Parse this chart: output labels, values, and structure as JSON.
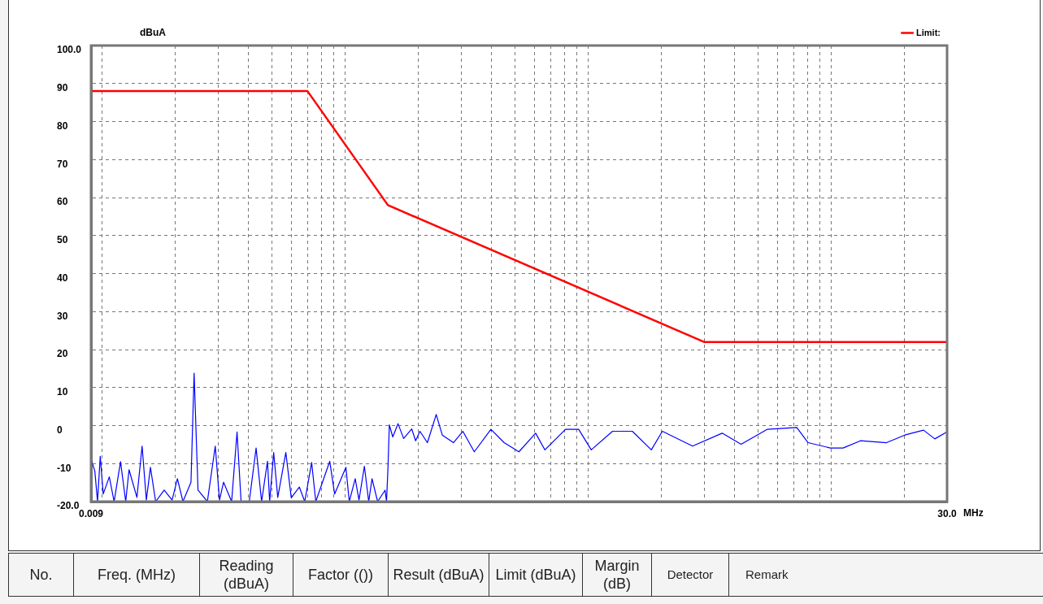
{
  "chart_data": {
    "type": "line",
    "xlabel": "MHz",
    "ylabel": "dBuA",
    "log": "x",
    "grid": true,
    "legend": "top right",
    "marker": "none",
    "line_style": "solid",
    "xlim": [
      0.009,
      30
    ],
    "ylim": [
      -20,
      100
    ],
    "xticks": [
      {
        "value": 0.009,
        "label": "0.009"
      },
      {
        "value": 0.01,
        "label": null
      },
      {
        "value": 0.02,
        "label": null
      },
      {
        "value": 0.03,
        "label": null
      },
      {
        "value": 0.04,
        "label": null
      },
      {
        "value": 0.05,
        "label": null
      },
      {
        "value": 0.06,
        "label": null
      },
      {
        "value": 0.07,
        "label": null
      },
      {
        "value": 0.08,
        "label": null
      },
      {
        "value": 0.09,
        "label": null
      },
      {
        "value": 0.1,
        "label": null
      },
      {
        "value": 0.2,
        "label": null
      },
      {
        "value": 0.3,
        "label": null
      },
      {
        "value": 0.4,
        "label": null
      },
      {
        "value": 0.5,
        "label": null
      },
      {
        "value": 0.6,
        "label": null
      },
      {
        "value": 0.7,
        "label": null
      },
      {
        "value": 0.8,
        "label": null
      },
      {
        "value": 0.9,
        "label": null
      },
      {
        "value": 1,
        "label": null
      },
      {
        "value": 2,
        "label": null
      },
      {
        "value": 3,
        "label": null
      },
      {
        "value": 4,
        "label": null
      },
      {
        "value": 5,
        "label": null
      },
      {
        "value": 6,
        "label": null
      },
      {
        "value": 7,
        "label": null
      },
      {
        "value": 8,
        "label": null
      },
      {
        "value": 9,
        "label": null
      },
      {
        "value": 10,
        "label": null
      },
      {
        "value": 20,
        "label": null
      },
      {
        "value": 30,
        "label": "30.0"
      }
    ],
    "yticks": [
      {
        "value": -20,
        "label": "-20.0"
      },
      -10,
      0,
      10,
      20,
      30,
      40,
      50,
      60,
      70,
      80,
      90,
      {
        "value": 100,
        "label": "100.0"
      }
    ],
    "series": [
      {
        "name": "Limit:",
        "color": "#ff0000",
        "x": [
          0.009,
          0.07,
          0.15,
          3,
          30
        ],
        "values": [
          88,
          88,
          58,
          22,
          22
        ]
      },
      {
        "color": "#0000ff",
        "x": [
          0.009,
          0.00933,
          0.00957,
          0.00982,
          0.0101,
          0.0107,
          0.0112,
          0.0119,
          0.0125,
          0.0129,
          0.0139,
          0.0146,
          0.0152,
          0.0158,
          0.0166,
          0.018,
          0.0194,
          0.0204,
          0.0215,
          0.0232,
          0.0239,
          0.0248,
          0.0271,
          0.0292,
          0.0304,
          0.0316,
          0.0341,
          0.0359,
          0.0373,
          0.0403,
          0.043,
          0.0453,
          0.0479,
          0.0489,
          0.0508,
          0.0528,
          0.057,
          0.06,
          0.0648,
          0.0682,
          0.0728,
          0.0757,
          0.0864,
          0.0905,
          0.1007,
          0.104,
          0.11,
          0.114,
          0.12,
          0.125,
          0.129,
          0.136,
          0.146,
          0.148,
          0.15,
          0.152,
          0.157,
          0.165,
          0.174,
          0.188,
          0.195,
          0.203,
          0.218,
          0.237,
          0.251,
          0.279,
          0.305,
          0.34,
          0.398,
          0.451,
          0.519,
          0.608,
          0.664,
          0.807,
          0.914,
          1.03,
          1.26,
          1.52,
          1.82,
          2.02,
          2.69,
          3.56,
          4.26,
          5.45,
          7.22,
          8.04,
          9.93,
          11.2,
          13.2,
          16.9,
          20.1,
          24,
          26.7,
          29.7,
          30
        ],
        "values": [
          -8.8,
          -12,
          -20,
          -8.1,
          -18,
          -13.5,
          -20,
          -9.5,
          -20,
          -11.6,
          -18.9,
          -5.4,
          -19.6,
          -11,
          -20,
          -17,
          -19.6,
          -14,
          -20,
          -14.9,
          13.8,
          -17,
          -20,
          -5.4,
          -19.6,
          -14.9,
          -20,
          -1.7,
          -20,
          -20,
          -5.9,
          -20,
          -9.4,
          -20,
          -7.1,
          -18.9,
          -7.1,
          -19,
          -16.2,
          -20,
          -9.7,
          -20,
          -9.4,
          -18,
          -11,
          -20,
          -14,
          -19.6,
          -10.7,
          -20,
          -14,
          -20,
          -17,
          -20,
          -11.3,
          0.2,
          -3,
          0.5,
          -3.4,
          -0.9,
          -4,
          -1.5,
          -4.5,
          2.9,
          -2.5,
          -4.5,
          -1.5,
          -6.9,
          -1,
          -4.5,
          -6.9,
          -2,
          -6.4,
          -1,
          -1,
          -6.4,
          -1.5,
          -1.5,
          -6.4,
          -1.5,
          -5.4,
          -2,
          -4.9,
          -1,
          -0.5,
          -4.5,
          -5.9,
          -5.9,
          -4,
          -4.5,
          -2.5,
          -1.2,
          -3.5,
          -1.8,
          -2
        ]
      }
    ],
    "annotations": [
      "No.",
      "Freq. (MHz)",
      "Reading (dBuA)",
      "Factor (())",
      "Result (dBuA)",
      "Limit (dBuA)",
      "Margin (dB)",
      "Detector",
      "Remark"
    ]
  }
}
